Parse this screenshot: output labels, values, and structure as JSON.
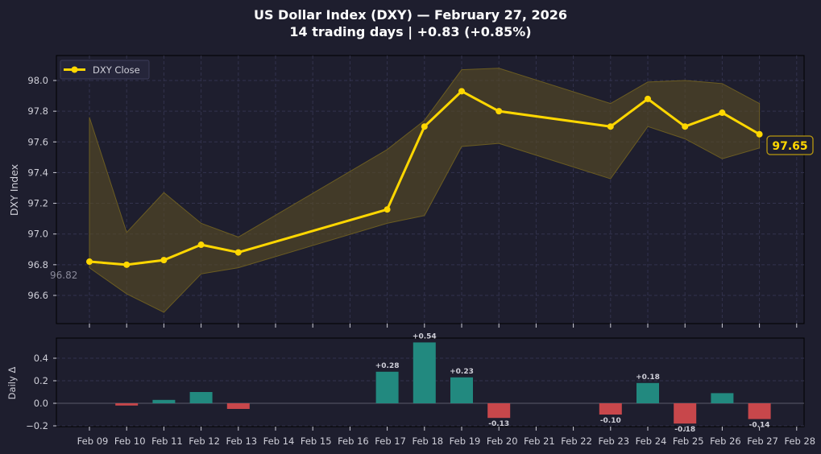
{
  "header": {
    "title_line1": "US Dollar Index (DXY)  —  February 27, 2026",
    "title_line2": "14 trading days  |  +0.83 (+0.85%)"
  },
  "colors": {
    "background": "#1e1e2e",
    "line": "#ffd700",
    "band": "#5a4d24",
    "up_bar": "#22897f",
    "down_bar": "#c8474b",
    "grid": "#33334d",
    "text": "#cfcfd8"
  },
  "legend": {
    "label": "DXY Close"
  },
  "annotations": {
    "last_value_label": "97.65",
    "first_value_label": "96.82"
  },
  "chart_data": [
    {
      "type": "line",
      "title": "US Dollar Index (DXY) — February 27, 2026",
      "subtitle": "14 trading days | +0.83 (+0.85%)",
      "xlabel": "",
      "ylabel": "DXY Index",
      "ylim": [
        96.42,
        98.16
      ],
      "yticks": [
        96.6,
        96.8,
        97.0,
        97.2,
        97.4,
        97.6,
        98.0,
        97.8
      ],
      "grid": true,
      "legend_position": "upper left",
      "x": [
        "Feb 09",
        "Feb 10",
        "Feb 11",
        "Feb 12",
        "Feb 13",
        "Feb 17",
        "Feb 18",
        "Feb 19",
        "Feb 20",
        "Feb 23",
        "Feb 24",
        "Feb 25",
        "Feb 26",
        "Feb 27"
      ],
      "series": [
        {
          "name": "DXY Close",
          "values": [
            96.82,
            96.8,
            96.83,
            96.93,
            96.88,
            97.16,
            97.7,
            97.93,
            97.8,
            97.7,
            97.88,
            97.7,
            97.79,
            97.65
          ]
        },
        {
          "name": "Band Upper",
          "values": [
            97.76,
            97.01,
            97.27,
            97.07,
            null,
            97.55,
            97.74,
            98.07,
            98.08,
            97.85,
            97.99,
            98.0,
            97.98,
            97.85
          ]
        },
        {
          "name": "Band Lower",
          "values": [
            96.78,
            96.61,
            96.49,
            96.74,
            null,
            97.07,
            97.12,
            97.57,
            97.59,
            97.36,
            97.7,
            97.62,
            97.49,
            97.56
          ]
        }
      ],
      "annotations": [
        "97.65 (last close)",
        "96.82 (first close)"
      ]
    },
    {
      "type": "bar",
      "title": "",
      "xlabel": "",
      "ylabel": "Daily Δ",
      "ylim": [
        -0.21,
        0.58
      ],
      "yticks": [
        -0.2,
        0.0,
        0.2,
        0.4
      ],
      "categories": [
        "Feb 10",
        "Feb 11",
        "Feb 12",
        "Feb 13",
        "Feb 17",
        "Feb 18",
        "Feb 19",
        "Feb 20",
        "Feb 23",
        "Feb 24",
        "Feb 25",
        "Feb 26",
        "Feb 27"
      ],
      "values": [
        -0.02,
        0.03,
        0.1,
        -0.05,
        0.28,
        0.54,
        0.23,
        -0.13,
        -0.1,
        0.18,
        -0.18,
        0.09,
        -0.14
      ],
      "labels": [
        "",
        "",
        "",
        "",
        "+0.28",
        "+0.54",
        "+0.23",
        "-0.13",
        "-0.10",
        "+0.18",
        "-0.18",
        "",
        "-0.14"
      ]
    }
  ],
  "xaxis": {
    "tick_labels": [
      "Feb 09",
      "Feb 10",
      "Feb 11",
      "Feb 12",
      "Feb 13",
      "Feb 14",
      "Feb 15",
      "Feb 16",
      "Feb 17",
      "Feb 18",
      "Feb 19",
      "Feb 20",
      "Feb 21",
      "Feb 22",
      "Feb 23",
      "Feb 24",
      "Feb 25",
      "Feb 26",
      "Feb 27",
      "Feb 28"
    ]
  },
  "upper_axis": {
    "ylabel": "DXY Index",
    "tick_labels": [
      "98.0",
      "97.8",
      "97.6",
      "97.4",
      "97.2",
      "97.0",
      "96.8",
      "96.6"
    ]
  },
  "lower_axis": {
    "ylabel": "Daily Δ",
    "tick_labels": [
      "0.4",
      "0.2",
      "0.0",
      "−0.2"
    ]
  }
}
